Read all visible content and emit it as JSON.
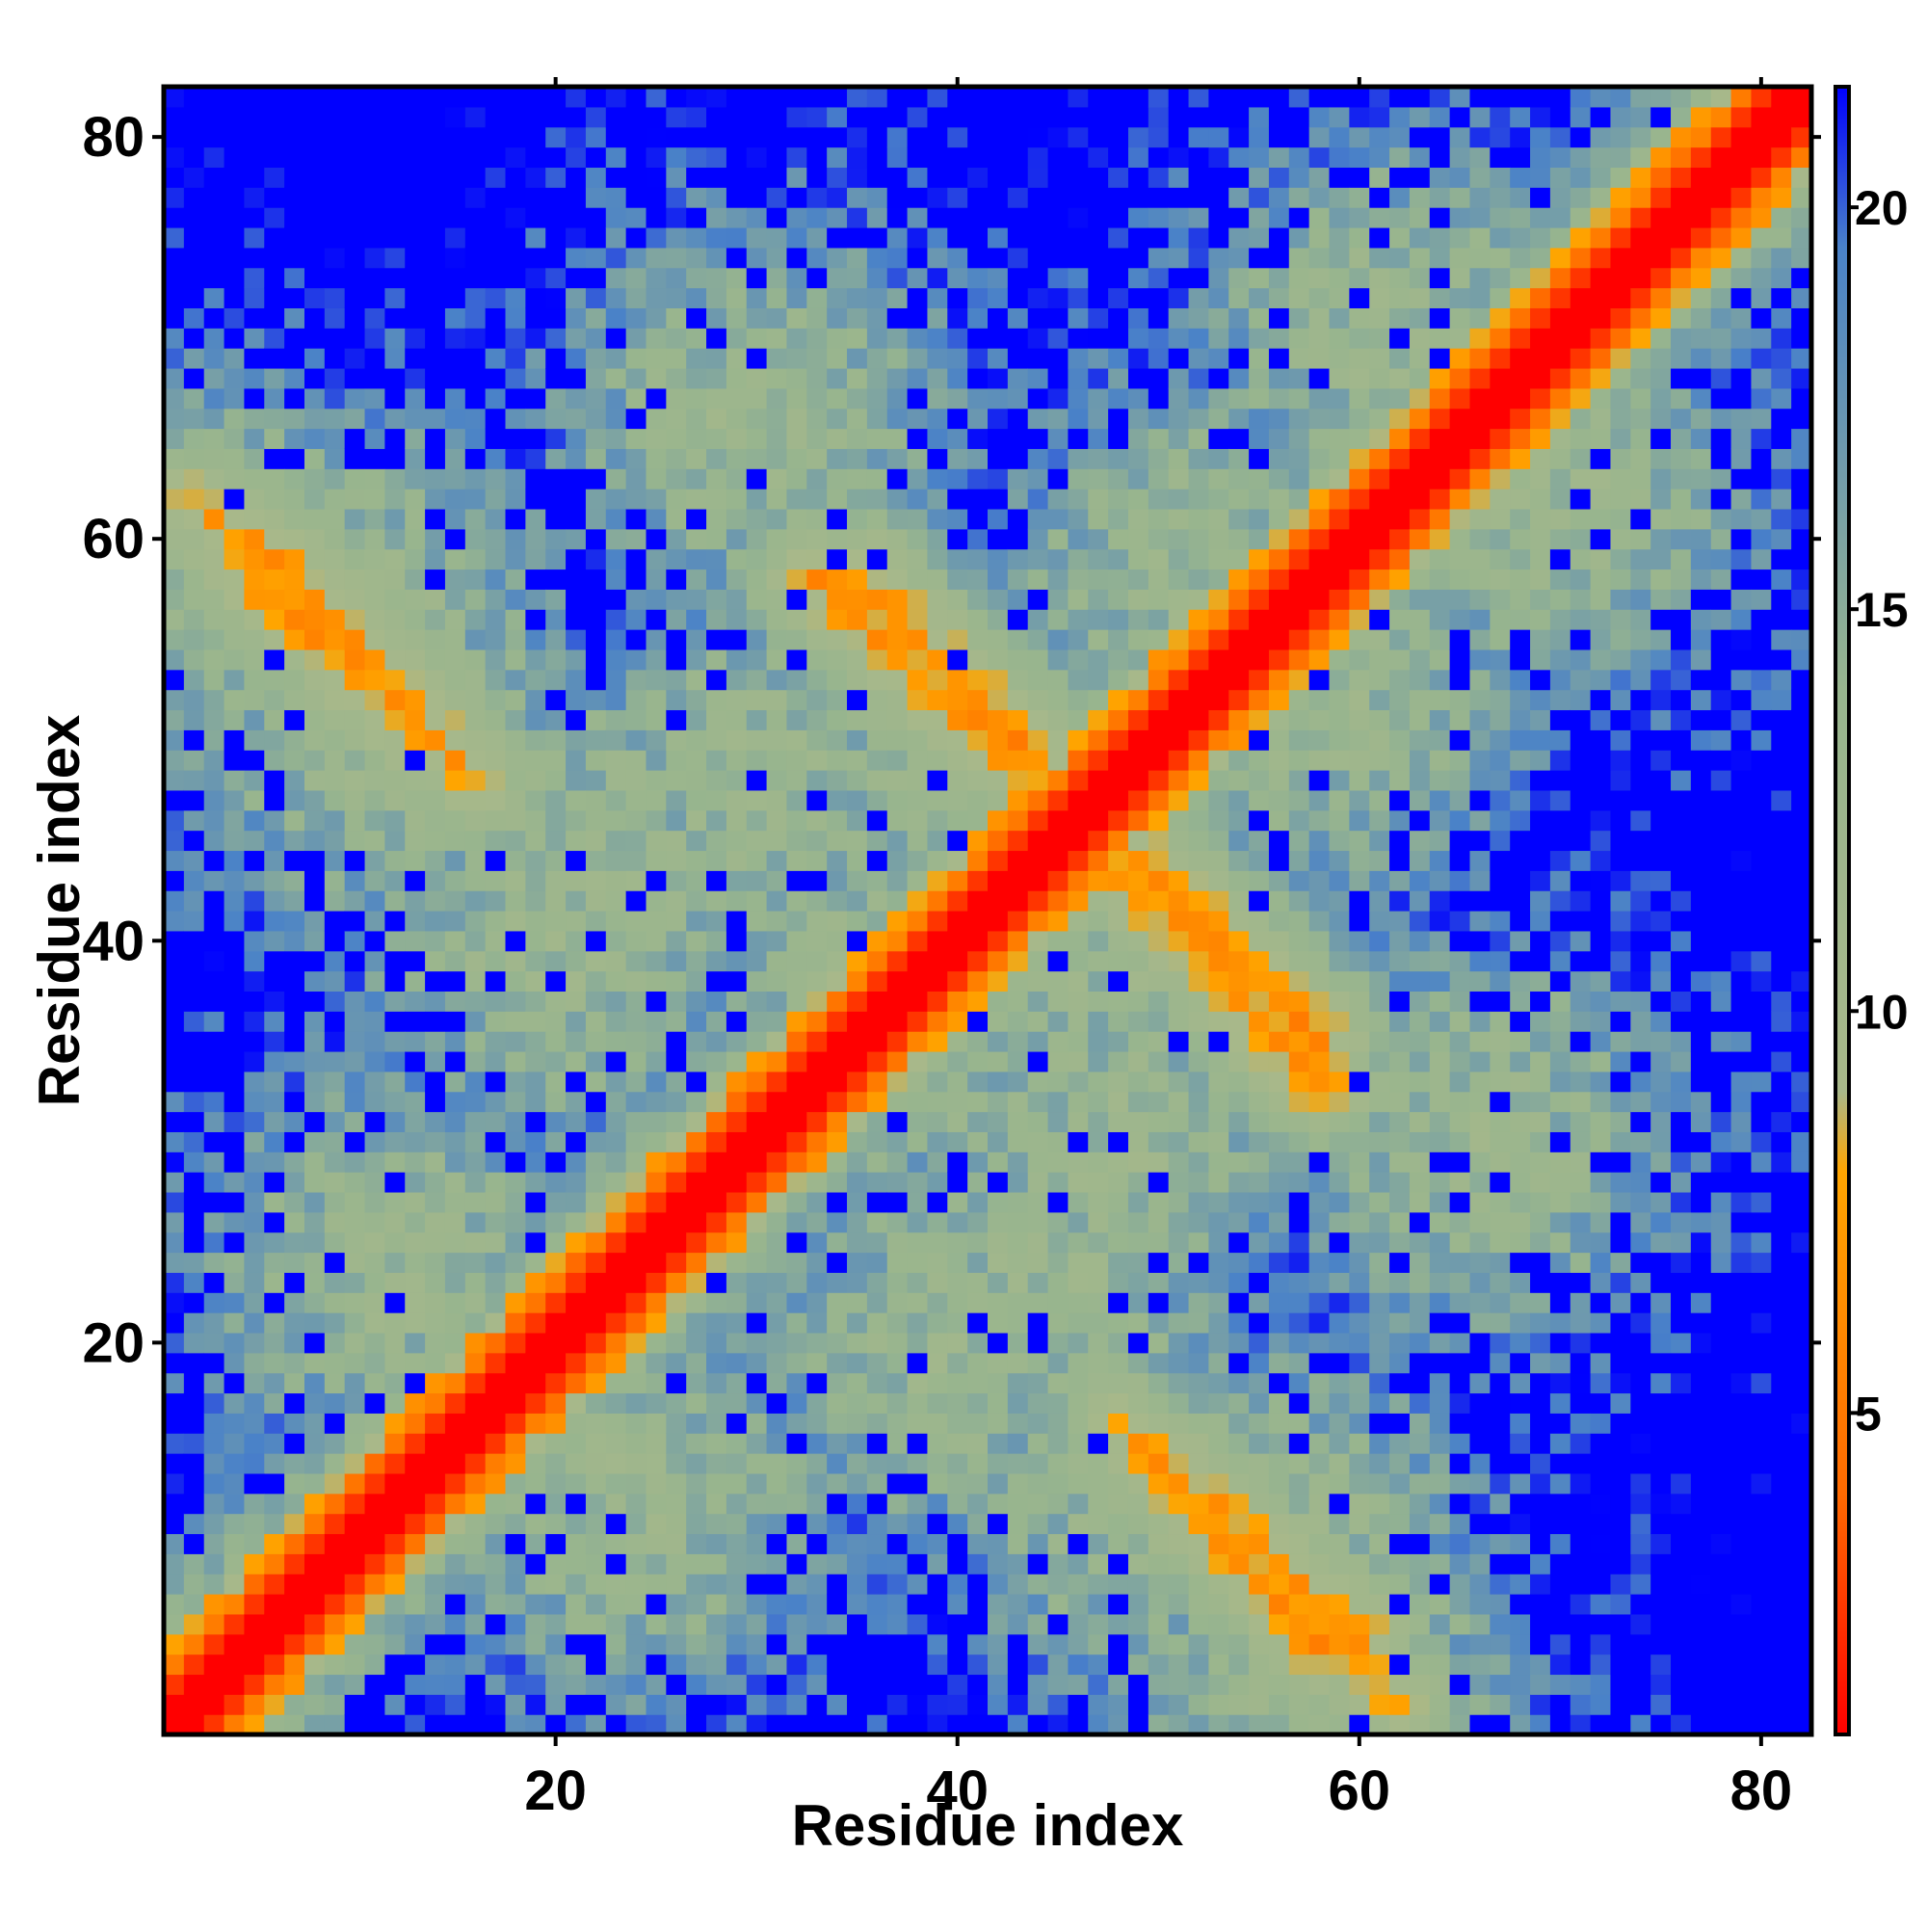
{
  "chart_data": {
    "type": "heatmap",
    "title": "",
    "xlabel": "Residue index",
    "ylabel": "Residue index",
    "n": 82,
    "xlim": [
      1,
      82
    ],
    "ylim": [
      1,
      82
    ],
    "x_ticks": [
      20,
      40,
      60,
      80
    ],
    "y_ticks": [
      20,
      40,
      60,
      80
    ],
    "colorbar": {
      "ticks": [
        5,
        10,
        15,
        20
      ],
      "range": [
        1,
        21.5
      ],
      "stops": [
        {
          "value": 1,
          "color": "#ff0000"
        },
        {
          "value": 4,
          "color": "#ff6a00"
        },
        {
          "value": 8,
          "color": "#ffa500"
        },
        {
          "value": 9,
          "color": "#a8b88a"
        },
        {
          "value": 14,
          "color": "#98b58e"
        },
        {
          "value": 19.5,
          "color": "#4a82c8"
        },
        {
          "value": 21.5,
          "color": "#0000ff"
        }
      ]
    },
    "description_values": "Symmetric residue-residue distance map; diagonal distance ~1-4 (red), beta-strand pairing anti-diagonals (orange, ~5-8), intermediate distances (green/grey-blue, 9-19), far pairs capped at ~21 (blue).",
    "features": {
      "diagonal_band": {
        "values_by_offset": [
          1,
          3,
          5,
          7,
          9
        ]
      },
      "strand_pairs": [
        {
          "i_range": [
            2,
            16
          ],
          "j_range": [
            62,
            48
          ],
          "value": 6
        },
        {
          "i_range": [
            5,
            14
          ],
          "j_range": [
            58,
            50
          ],
          "value": 5
        },
        {
          "i_range": [
            35,
            45
          ],
          "j_range": [
            58,
            48
          ],
          "value": 5
        },
        {
          "i_range": [
            47,
            58
          ],
          "j_range": [
            45,
            33
          ],
          "value": 5
        },
        {
          "i_range": [
            50,
            60
          ],
          "j_range": [
            14,
            5
          ],
          "value": 5
        }
      ]
    }
  },
  "colors": {
    "near": "#ff0000",
    "mid": "#ffa500",
    "far": "#0000ff"
  }
}
